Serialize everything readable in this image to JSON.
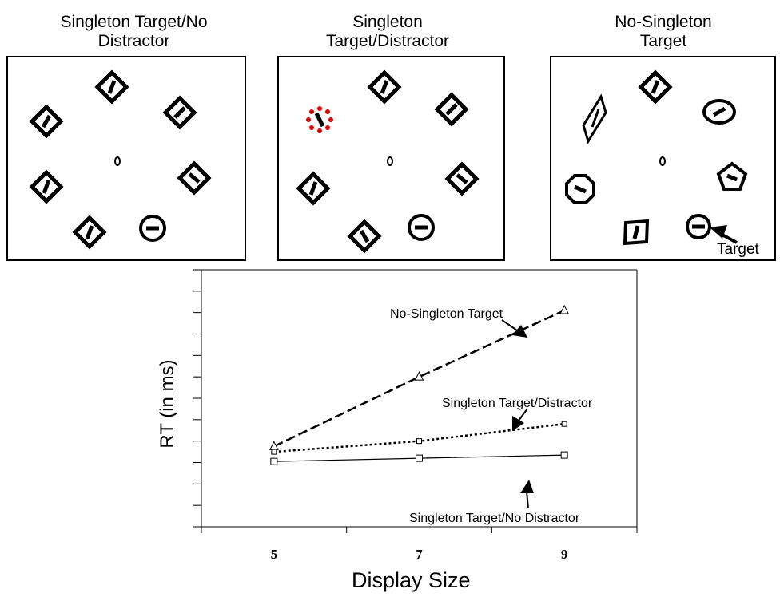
{
  "panels": [
    {
      "title_line1": "Singleton  Target/No",
      "title_line2": "Distractor"
    },
    {
      "title_line1": "Singleton",
      "title_line2": "Target/Distractor"
    },
    {
      "title_line1": "No-Singleton",
      "title_line2": "Target",
      "pointer_label": "Target"
    }
  ],
  "chart_data": {
    "type": "line",
    "x": [
      5,
      7,
      9
    ],
    "xlabel": "Display Size",
    "ylabel": "RT (in ms)",
    "series": [
      {
        "name": "No-Singleton Target",
        "values": [
          575,
          640,
          702
        ],
        "marker": "triangle",
        "style": "dashed"
      },
      {
        "name": "Singleton Target/Distractor",
        "values": [
          570,
          580,
          596
        ],
        "marker": "square-small",
        "style": "dotted"
      },
      {
        "name": "Singleton Target/No Distractor",
        "values": [
          561,
          564,
          567
        ],
        "marker": "square",
        "style": "solid"
      }
    ],
    "ylim": [
      500,
      740
    ],
    "grid": false
  }
}
